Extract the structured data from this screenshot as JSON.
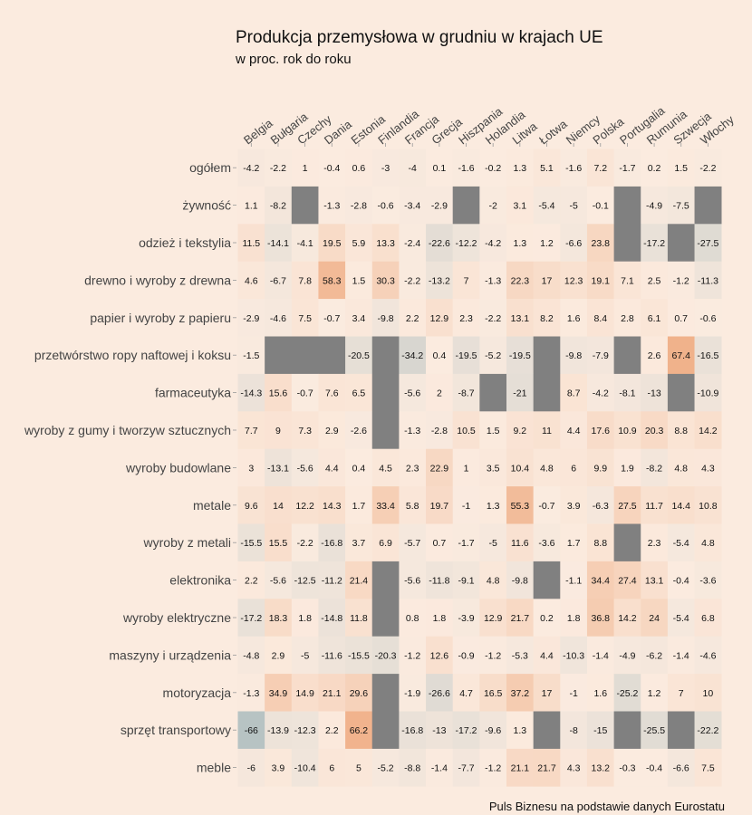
{
  "chart_data": {
    "type": "heatmap",
    "title": "Produkcja przemysłowa w grudniu w krajach UE",
    "subtitle": "w proc. rok do roku",
    "caption": "Puls Biznesu na podstawie danych Eurostatu",
    "columns": [
      "Belgia",
      "Bułgaria",
      "Czechy",
      "Dania",
      "Estonia",
      "Finlandia",
      "Francja",
      "Grecja",
      "Hiszpania",
      "Holandia",
      "Litwa",
      "Łotwa",
      "Niemcy",
      "Polska",
      "Portugalia",
      "Rumunia",
      "Szwecja",
      "Włochy"
    ],
    "rows": [
      "ogółem",
      "żywność",
      "odzież i tekstylia",
      "drewno i wyroby z drewna",
      "papier i wyroby z papieru",
      "przetwórstwo ropy naftowej i koksu",
      "farmaceutyka",
      "wyroby z gumy i tworzyw sztucznych",
      "wyroby budowlane",
      "metale",
      "wyroby z metali",
      "elektronika",
      "wyroby elektryczne",
      "maszyny i urządzenia",
      "motoryzacja",
      "sprzęt transportowy",
      "meble"
    ],
    "values": [
      [
        -4.2,
        -2.2,
        1,
        -0.4,
        0.6,
        -3,
        -4,
        0.1,
        -1.6,
        -0.2,
        1.3,
        5.1,
        -1.6,
        7.2,
        -1.7,
        0.2,
        1.5,
        -2.2
      ],
      [
        1.1,
        -8.2,
        null,
        -1.3,
        -2.8,
        -0.6,
        -3.4,
        -2.9,
        null,
        -2,
        3.1,
        -5.4,
        -5,
        -0.1,
        null,
        -4.9,
        -7.5,
        null
      ],
      [
        11.5,
        -14.1,
        -4.1,
        19.5,
        5.9,
        13.3,
        -2.4,
        -22.6,
        -12.2,
        -4.2,
        1.3,
        1.2,
        -6.6,
        23.8,
        null,
        -17.2,
        null,
        -27.5
      ],
      [
        4.6,
        -6.7,
        7.8,
        58.3,
        1.5,
        30.3,
        -2.2,
        -13.2,
        7,
        -1.3,
        22.3,
        17,
        12.3,
        19.1,
        7.1,
        2.5,
        -1.2,
        -11.3
      ],
      [
        -2.9,
        -4.6,
        7.5,
        -0.7,
        3.4,
        -9.8,
        2.2,
        12.9,
        2.3,
        -2.2,
        13.1,
        8.2,
        1.6,
        8.4,
        2.8,
        6.1,
        0.7,
        -0.6
      ],
      [
        -1.5,
        null,
        null,
        null,
        -20.5,
        null,
        -34.2,
        0.4,
        -19.5,
        -5.2,
        -19.5,
        null,
        -9.8,
        -7.9,
        null,
        2.6,
        67.4,
        -16.5
      ],
      [
        -14.3,
        15.6,
        -0.7,
        7.6,
        6.5,
        null,
        -5.6,
        2,
        -8.7,
        null,
        -21,
        null,
        8.7,
        -4.2,
        -8.1,
        -13,
        null,
        -10.9
      ],
      [
        7.7,
        9,
        7.3,
        2.9,
        -2.6,
        null,
        -1.3,
        -2.8,
        10.5,
        1.5,
        9.2,
        11,
        4.4,
        17.6,
        10.9,
        20.3,
        8.8,
        14.2
      ],
      [
        3,
        -13.1,
        -5.6,
        4.4,
        0.4,
        4.5,
        2.3,
        22.9,
        1,
        3.5,
        10.4,
        4.8,
        6,
        9.9,
        1.9,
        -8.2,
        4.8,
        4.3
      ],
      [
        9.6,
        14,
        12.2,
        14.3,
        1.7,
        33.4,
        5.8,
        19.7,
        -1,
        1.3,
        55.3,
        -0.7,
        3.9,
        -6.3,
        27.5,
        11.7,
        14.4,
        10.8
      ],
      [
        -15.5,
        15.5,
        -2.2,
        -16.8,
        3.7,
        6.9,
        -5.7,
        0.7,
        -1.7,
        -5,
        11.6,
        -3.6,
        1.7,
        8.8,
        null,
        2.3,
        -5.4,
        4.8
      ],
      [
        2.2,
        -5.6,
        -12.5,
        -11.2,
        21.4,
        null,
        -5.6,
        -11.8,
        -9.1,
        4.8,
        -9.8,
        null,
        -1.1,
        34.4,
        27.4,
        13.1,
        -0.4,
        -3.6
      ],
      [
        -17.2,
        18.3,
        1.8,
        -14.8,
        11.8,
        null,
        0.8,
        1.8,
        -3.9,
        12.9,
        21.7,
        0.2,
        1.8,
        36.8,
        14.2,
        24,
        -5.4,
        6.8
      ],
      [
        -4.8,
        2.9,
        -5,
        -11.6,
        -15.5,
        -20.3,
        -1.2,
        12.6,
        -0.9,
        -1.2,
        -5.3,
        4.4,
        -10.3,
        -1.4,
        -4.9,
        -6.2,
        -1.4,
        -4.6
      ],
      [
        -1.3,
        34.9,
        14.9,
        21.1,
        29.6,
        null,
        -1.9,
        -26.6,
        4.7,
        16.5,
        37.2,
        17,
        -1,
        1.6,
        -25.2,
        1.2,
        7,
        10
      ],
      [
        -66,
        -13.9,
        -12.3,
        2.2,
        66.2,
        null,
        -16.8,
        -13,
        -17.2,
        -9.6,
        1.3,
        null,
        -8,
        -15,
        null,
        -25.5,
        null,
        -22.2
      ],
      [
        -6,
        3.9,
        -10.4,
        6,
        5,
        -5.2,
        -8.8,
        -1.4,
        -7.7,
        -1.2,
        21.1,
        21.7,
        4.3,
        13.2,
        -0.3,
        -0.4,
        -6.6,
        7.5
      ]
    ],
    "color_scale": {
      "negative": "#b3c1c1",
      "zero": "#fbebdf",
      "positive": "#f0b088",
      "missing": "#808080",
      "range": [
        -70,
        70
      ]
    },
    "grid": false,
    "legend": "none"
  }
}
